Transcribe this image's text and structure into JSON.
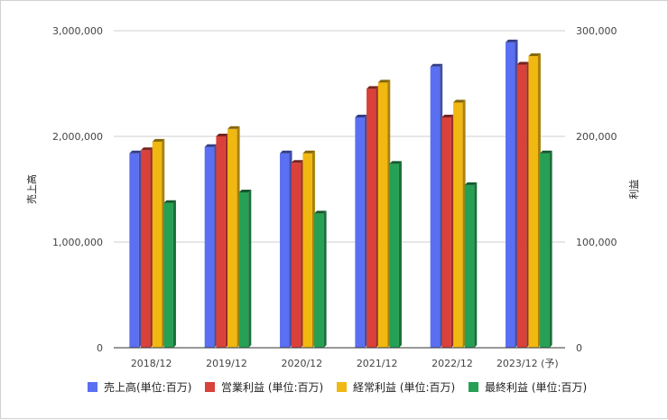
{
  "chart_data": {
    "type": "bar",
    "categories": [
      "2018/12",
      "2019/12",
      "2020/12",
      "2021/12",
      "2022/12",
      "2023/12 (予)"
    ],
    "left_axis": {
      "label": "売上高",
      "ylim": [
        0,
        3000000
      ],
      "ticks": [
        0,
        1000000,
        2000000,
        3000000
      ],
      "tick_labels": [
        "0",
        "1,000,000",
        "2,000,000",
        "3,000,000"
      ]
    },
    "right_axis": {
      "label": "利益",
      "ylim": [
        0,
        300000
      ],
      "ticks": [
        0,
        100000,
        200000,
        300000
      ],
      "tick_labels": [
        "0",
        "100,000",
        "200,000",
        "300,000"
      ]
    },
    "series": [
      {
        "name": "売上高(単位:百万)",
        "axis": "left",
        "color": "#5b6ff2",
        "values": [
          1840000,
          1900000,
          1840000,
          2180000,
          2660000,
          2890000
        ]
      },
      {
        "name": "営業利益 (単位:百万)",
        "axis": "right",
        "color": "#d9413a",
        "values": [
          187000,
          200000,
          175000,
          245000,
          218000,
          268000
        ]
      },
      {
        "name": "経常利益 (単位:百万)",
        "axis": "right",
        "color": "#f1b811",
        "values": [
          195000,
          207000,
          184000,
          251000,
          232000,
          276000
        ]
      },
      {
        "name": "最終利益 (単位:百万)",
        "axis": "right",
        "color": "#26a054",
        "values": [
          137000,
          147000,
          127000,
          174000,
          154000,
          184000
        ]
      }
    ],
    "grid": true,
    "legend": "bottom"
  }
}
